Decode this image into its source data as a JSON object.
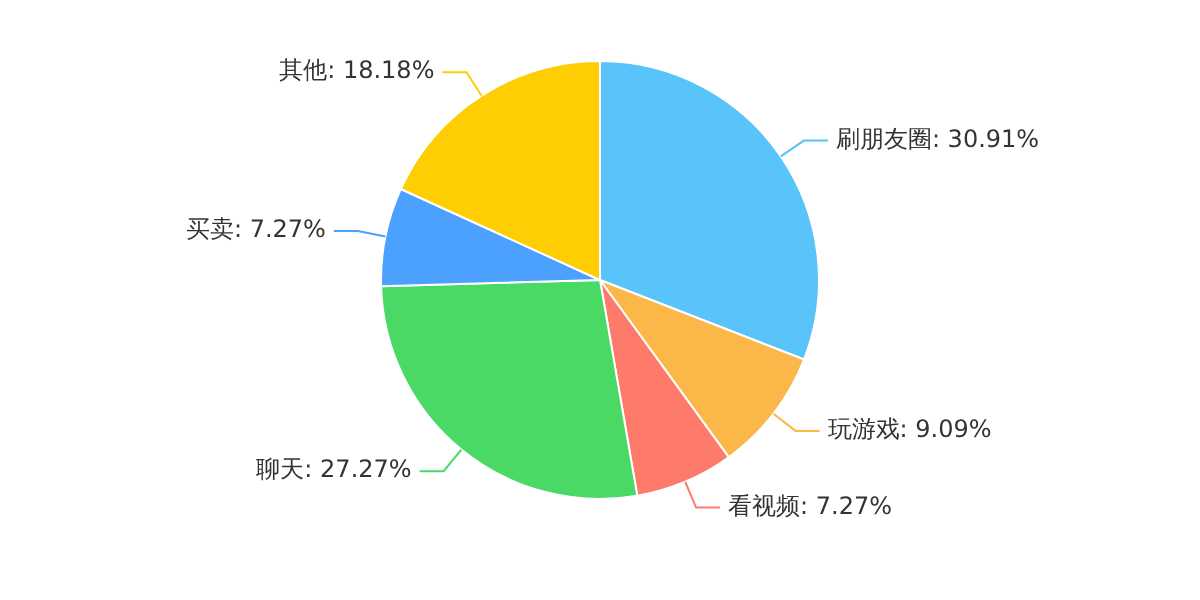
{
  "chart_data": {
    "type": "pie",
    "categories": [
      "刷朋友圈",
      "玩游戏",
      "看视频",
      "聊天",
      "买卖",
      "其他"
    ],
    "values": [
      30.91,
      9.09,
      7.27,
      27.27,
      7.27,
      18.18
    ],
    "value_labels": [
      "30.91%",
      "9.09%",
      "7.27%",
      "27.27%",
      "7.27%",
      "18.18%"
    ],
    "colors": [
      "#59c4fa",
      "#fbb848",
      "#fe7a6b",
      "#4bd965",
      "#4ca1fe",
      "#fecd02"
    ],
    "legend": false
  }
}
